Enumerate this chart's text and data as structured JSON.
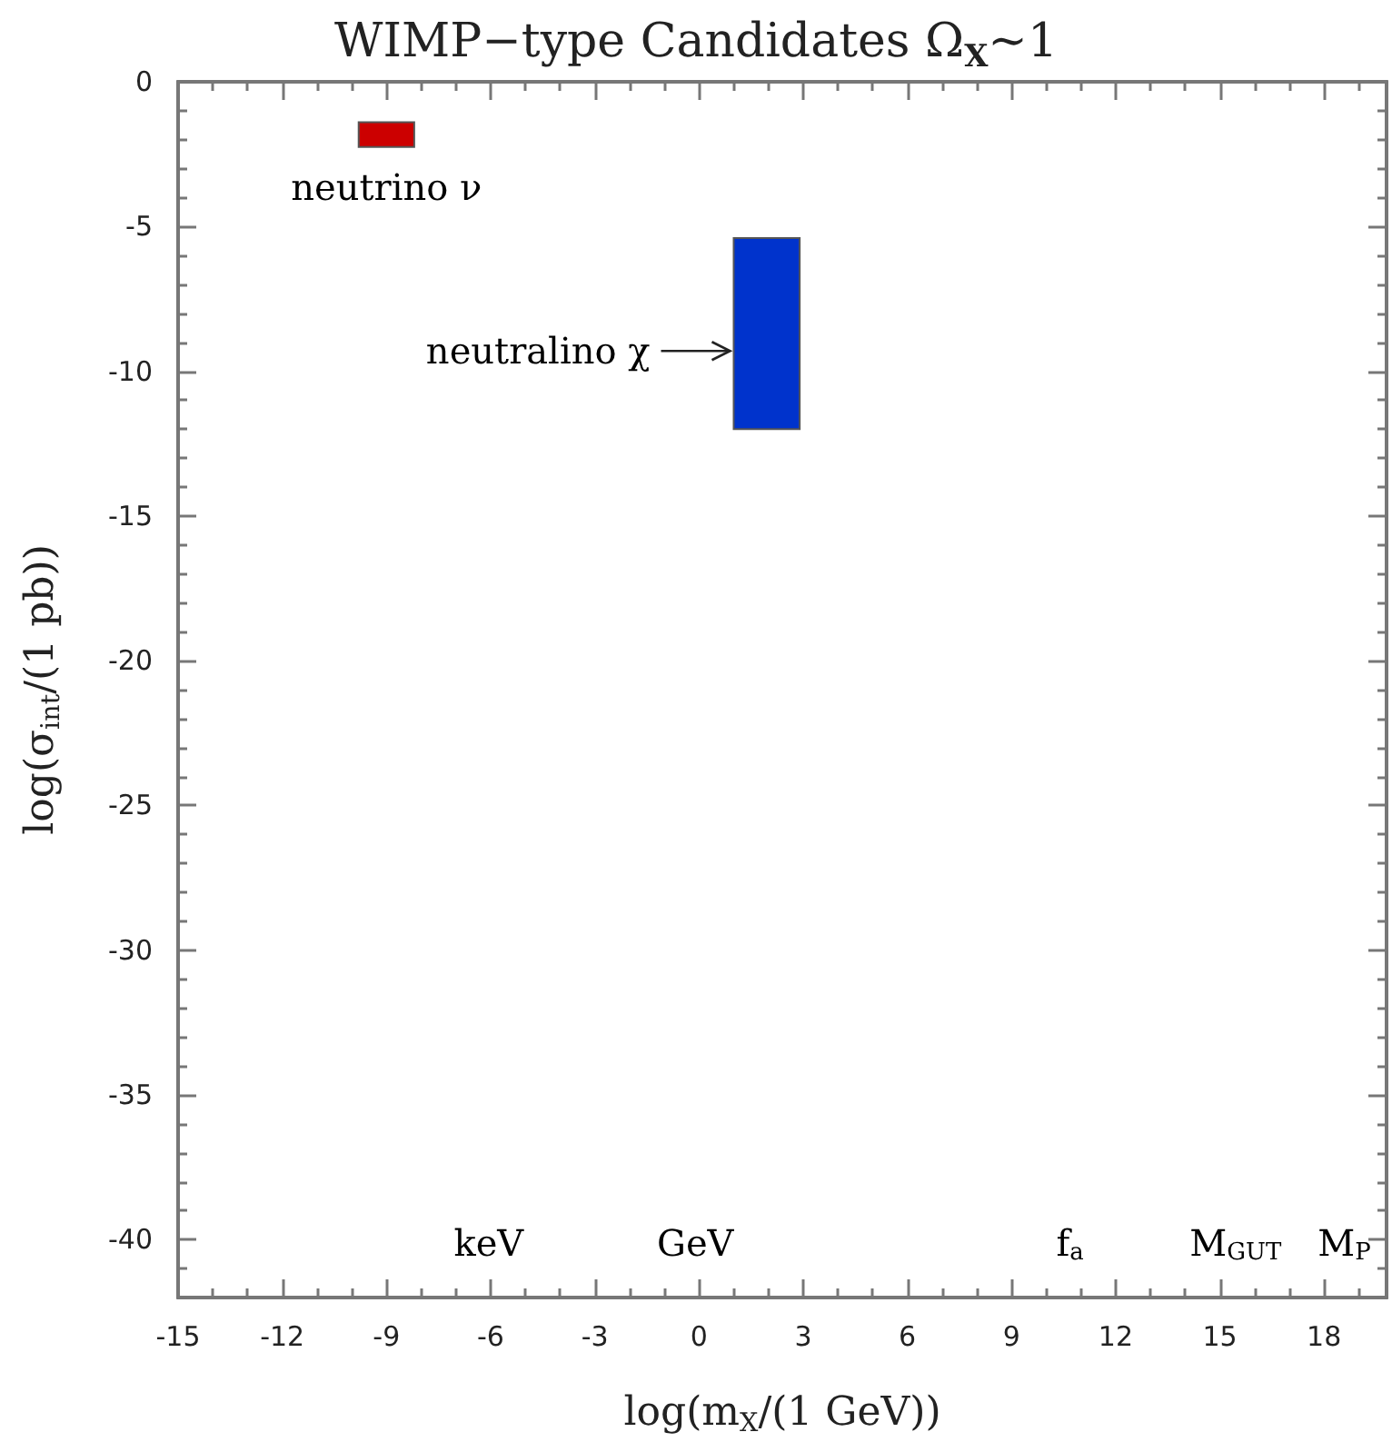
{
  "chart_data": {
    "type": "area",
    "title": "WIMP−type Candidates Ω$_{X}$~1",
    "xlabel": "log(m$_{X}$/(1 GeV))",
    "ylabel": "log(σ$_{int}$/(1 pb))",
    "series": [
      {
        "color": "#cc0000",
        "x": [
          -9.8,
          -8.2,
          -8.2,
          -9.8
        ],
        "values": [
          -2.25,
          -2.25,
          -1.4,
          -1.4
        ]
      },
      {
        "color": "#0033cc",
        "x": [
          1,
          2.9,
          2.9,
          1
        ],
        "values": [
          -12,
          -12,
          -5.4,
          -5.4
        ]
      }
    ],
    "annotations": [
      {
        "text": "neutrino ν",
        "x": -9,
        "y": -2.25
      },
      {
        "text": "neutralino χ",
        "x": 1,
        "y": -9.3
      },
      "keV",
      "GeV",
      "f$_{a}$",
      "M$_{GUT}$",
      "M$_{P}$"
    ],
    "xlim": [
      -15,
      19.8
    ],
    "xticks": [
      -15,
      {
        "value": -14,
        "label": null
      },
      {
        "value": -13,
        "label": null
      },
      -12,
      {
        "value": -11,
        "label": null
      },
      {
        "value": -10,
        "label": null
      },
      -9,
      {
        "value": -8,
        "label": null
      },
      {
        "value": -7,
        "label": null
      },
      -6,
      {
        "value": -5,
        "label": null
      },
      {
        "value": -4,
        "label": null
      },
      -3,
      {
        "value": -2,
        "label": null
      },
      {
        "value": -1,
        "label": null
      },
      0,
      {
        "value": 1,
        "label": null
      },
      {
        "value": 2,
        "label": null
      },
      3,
      {
        "value": 4,
        "label": null
      },
      {
        "value": 5,
        "label": null
      },
      6,
      {
        "value": 7,
        "label": null
      },
      {
        "value": 8,
        "label": null
      },
      9,
      {
        "value": 10,
        "label": null
      },
      {
        "value": 11,
        "label": null
      },
      12,
      {
        "value": 13,
        "label": null
      },
      {
        "value": 14,
        "label": null
      },
      15,
      {
        "value": 16,
        "label": null
      },
      {
        "value": 17,
        "label": null
      },
      18,
      {
        "value": 19,
        "label": null
      }
    ],
    "ylim": [
      -42,
      0
    ],
    "yticks": [
      {
        "value": -42,
        "label": null
      },
      {
        "value": -41,
        "label": null
      },
      -40,
      {
        "value": -39,
        "label": null
      },
      {
        "value": -38,
        "label": null
      },
      {
        "value": -37,
        "label": null
      },
      {
        "value": -36,
        "label": null
      },
      -35,
      {
        "value": -34,
        "label": null
      },
      {
        "value": -33,
        "label": null
      },
      {
        "value": -32,
        "label": null
      },
      {
        "value": -31,
        "label": null
      },
      -30,
      {
        "value": -29,
        "label": null
      },
      {
        "value": -28,
        "label": null
      },
      {
        "value": -27,
        "label": null
      },
      {
        "value": -26,
        "label": null
      },
      -25,
      {
        "value": -24,
        "label": null
      },
      {
        "value": -23,
        "label": null
      },
      {
        "value": -22,
        "label": null
      },
      {
        "value": -21,
        "label": null
      },
      -20,
      {
        "value": -19,
        "label": null
      },
      {
        "value": -18,
        "label": null
      },
      {
        "value": -17,
        "label": null
      },
      {
        "value": -16,
        "label": null
      },
      -15,
      {
        "value": -14,
        "label": null
      },
      {
        "value": -13,
        "label": null
      },
      {
        "value": -12,
        "label": null
      },
      {
        "value": -11,
        "label": null
      },
      -10,
      {
        "value": -9,
        "label": null
      },
      {
        "value": -8,
        "label": null
      },
      {
        "value": -7,
        "label": null
      },
      {
        "value": -6,
        "label": null
      },
      -5,
      {
        "value": -4,
        "label": null
      },
      {
        "value": -3,
        "label": null
      },
      {
        "value": -2,
        "label": null
      },
      {
        "value": -1,
        "label": null
      },
      0
    ]
  }
}
